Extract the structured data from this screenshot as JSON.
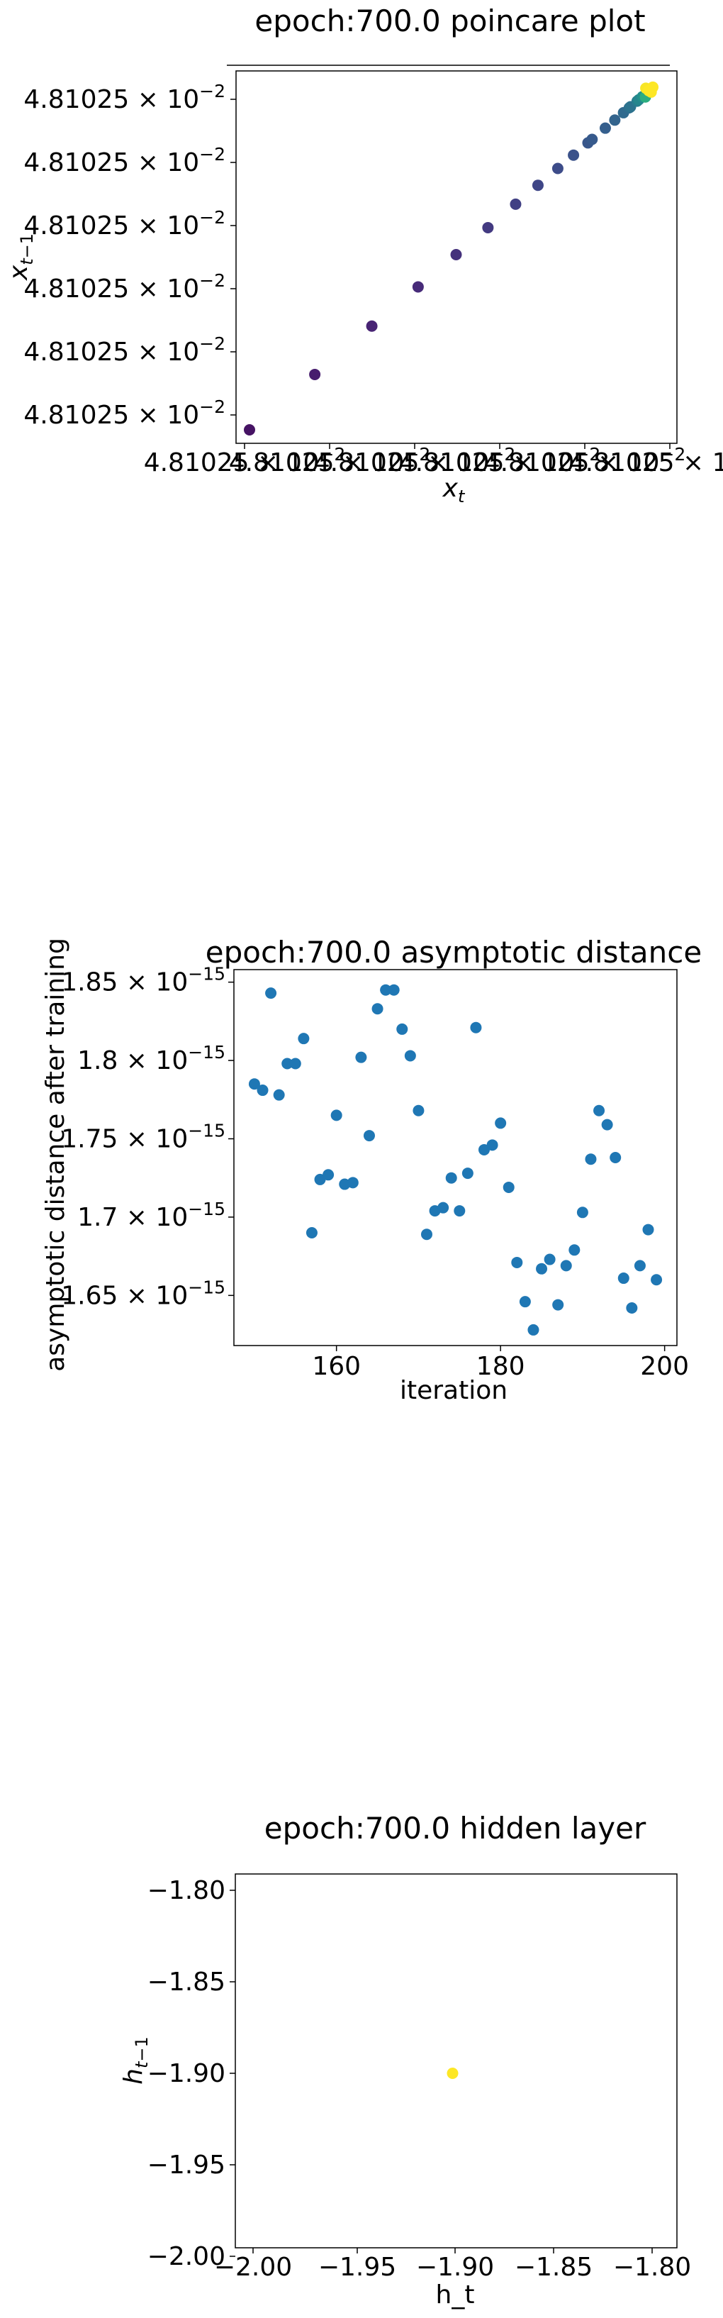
{
  "chart_data": [
    {
      "type": "scatter",
      "title": "epoch:700.0 poincare plot",
      "xlabel": "x_t",
      "ylabel": "x_{t-1}",
      "tick_mantissa": "4.81025",
      "tick_exponent": "−2",
      "x_tick_count": 6,
      "y_tick_count": 6,
      "colormap": "viridis",
      "note_values": "axis range is sub-precision around 4.81025e-2; values given in normalized progression order 0..1",
      "points": [
        {
          "x": 0.0,
          "y": 0.0,
          "c": 0.05
        },
        {
          "x": 0.158,
          "y": 0.158,
          "c": 0.08
        },
        {
          "x": 0.296,
          "y": 0.296,
          "c": 0.1
        },
        {
          "x": 0.408,
          "y": 0.408,
          "c": 0.12
        },
        {
          "x": 0.5,
          "y": 0.5,
          "c": 0.14
        },
        {
          "x": 0.577,
          "y": 0.577,
          "c": 0.17
        },
        {
          "x": 0.644,
          "y": 0.644,
          "c": 0.19
        },
        {
          "x": 0.698,
          "y": 0.698,
          "c": 0.21
        },
        {
          "x": 0.746,
          "y": 0.746,
          "c": 0.23
        },
        {
          "x": 0.784,
          "y": 0.784,
          "c": 0.25
        },
        {
          "x": 0.819,
          "y": 0.819,
          "c": 0.27
        },
        {
          "x": 0.829,
          "y": 0.829,
          "c": 0.28
        },
        {
          "x": 0.861,
          "y": 0.861,
          "c": 0.3
        },
        {
          "x": 0.884,
          "y": 0.884,
          "c": 0.32
        },
        {
          "x": 0.905,
          "y": 0.905,
          "c": 0.34
        },
        {
          "x": 0.919,
          "y": 0.919,
          "c": 0.36
        },
        {
          "x": 0.922,
          "y": 0.922,
          "c": 0.38
        },
        {
          "x": 0.938,
          "y": 0.938,
          "c": 0.42
        },
        {
          "x": 0.942,
          "y": 0.942,
          "c": 0.46
        },
        {
          "x": 0.951,
          "y": 0.951,
          "c": 0.5
        },
        {
          "x": 0.958,
          "y": 0.95,
          "c": 0.62
        },
        {
          "x": 0.959,
          "y": 0.975,
          "c": 0.99
        },
        {
          "x": 0.966,
          "y": 0.968,
          "c": 1.0
        },
        {
          "x": 0.972,
          "y": 0.964,
          "c": 1.0
        },
        {
          "x": 0.976,
          "y": 0.978,
          "c": 1.0
        }
      ]
    },
    {
      "type": "scatter",
      "title": "epoch:700.0 asymptotic distance",
      "xlabel": "iteration",
      "ylabel": "asymptotic distance after training",
      "xlim": [
        147.5,
        201.5
      ],
      "ylim": [
        1.618,
        1.858
      ],
      "y_exponent": "−15",
      "x_ticks": [
        160,
        180,
        200
      ],
      "y_ticks": [
        1.65,
        1.7,
        1.75,
        1.8,
        1.85
      ],
      "color": "#1f77b4",
      "x": [
        150,
        151,
        152,
        153,
        154,
        155,
        156,
        157,
        158,
        159,
        160,
        161,
        162,
        163,
        164,
        165,
        166,
        167,
        168,
        169,
        170,
        171,
        172,
        173,
        174,
        175,
        176,
        177,
        178,
        179,
        180,
        181,
        182,
        183,
        184,
        185,
        186,
        187,
        188,
        189,
        190,
        191,
        192,
        193,
        194,
        195,
        196,
        197,
        198,
        199
      ],
      "y": [
        1.785,
        1.781,
        1.843,
        1.778,
        1.798,
        1.798,
        1.814,
        1.69,
        1.724,
        1.727,
        1.765,
        1.721,
        1.722,
        1.802,
        1.752,
        1.833,
        1.845,
        1.845,
        1.82,
        1.803,
        1.768,
        1.689,
        1.704,
        1.706,
        1.725,
        1.704,
        1.728,
        1.821,
        1.743,
        1.746,
        1.76,
        1.719,
        1.671,
        1.646,
        1.628,
        1.667,
        1.673,
        1.644,
        1.669,
        1.679,
        1.703,
        1.737,
        1.768,
        1.759,
        1.738,
        1.661,
        1.642,
        1.669,
        1.692,
        1.66
      ]
    },
    {
      "type": "scatter",
      "title": "epoch:700.0 hidden layer",
      "xlabel": "h_t",
      "ylabel": "h_{t-1}",
      "xlim": [
        -2.0,
        -1.8
      ],
      "ylim": [
        -2.0,
        -1.8
      ],
      "x_ticks": [
        "−2.00",
        "−1.95",
        "−1.90",
        "−1.85",
        "−1.80"
      ],
      "y_ticks": [
        "−1.80",
        "−1.85",
        "−1.90",
        "−1.95",
        "−2.00"
      ],
      "color": "#fde725",
      "x": [
        -1.9
      ],
      "y": [
        -1.9
      ]
    }
  ]
}
